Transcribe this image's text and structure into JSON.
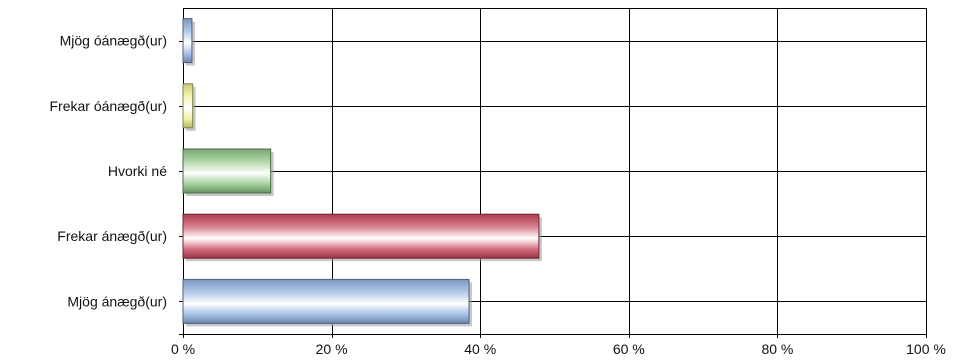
{
  "chart_data": {
    "type": "bar",
    "orientation": "horizontal",
    "title": "",
    "xlabel": "",
    "ylabel": "",
    "categories": [
      "Mjög óánægð(ur)",
      "Frekar óánægð(ur)",
      "Hvorki né",
      "Frekar ánægð(ur)",
      "Mjög ánægð(ur)"
    ],
    "values": [
      1.2,
      1.3,
      11.8,
      47.9,
      38.5
    ],
    "xlim": [
      0,
      100
    ],
    "x_ticks": [
      0,
      20,
      40,
      60,
      80,
      100
    ],
    "x_tick_labels": [
      "0 %",
      "20 %",
      "40 %",
      "60 %",
      "80 %",
      "100 %"
    ],
    "grid": true,
    "legend": "none",
    "bar_colors": [
      "#8fb0e0",
      "#eef08a",
      "#8cc482",
      "#c8455c",
      "#8fb0e0"
    ]
  }
}
